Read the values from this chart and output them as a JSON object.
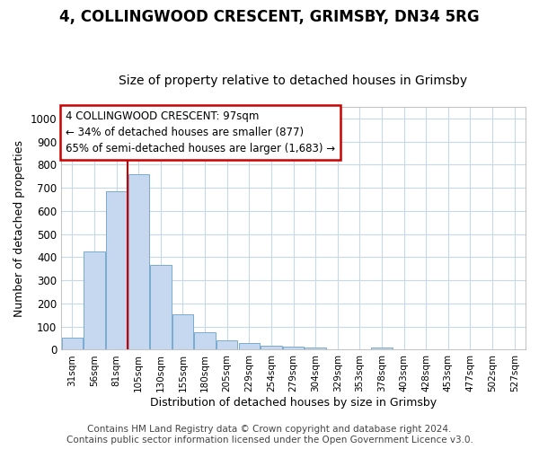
{
  "title1": "4, COLLINGWOOD CRESCENT, GRIMSBY, DN34 5RG",
  "title2": "Size of property relative to detached houses in Grimsby",
  "xlabel": "Distribution of detached houses by size in Grimsby",
  "ylabel": "Number of detached properties",
  "categories": [
    "31sqm",
    "56sqm",
    "81sqm",
    "105sqm",
    "130sqm",
    "155sqm",
    "180sqm",
    "205sqm",
    "229sqm",
    "254sqm",
    "279sqm",
    "304sqm",
    "329sqm",
    "353sqm",
    "378sqm",
    "403sqm",
    "428sqm",
    "453sqm",
    "477sqm",
    "502sqm",
    "527sqm"
  ],
  "values": [
    52,
    425,
    685,
    760,
    365,
    155,
    75,
    40,
    30,
    17,
    15,
    10,
    0,
    0,
    10,
    0,
    0,
    0,
    0,
    0,
    0
  ],
  "bar_color": "#c5d8ef",
  "bar_edge_color": "#7aaad0",
  "grid_color": "#c8d8e8",
  "annotation_box_text": "4 COLLINGWOOD CRESCENT: 97sqm\n← 34% of detached houses are smaller (877)\n65% of semi-detached houses are larger (1,683) →",
  "annotation_box_color": "#ffffff",
  "annotation_box_edge_color": "#cc0000",
  "annotation_text_size": 8.5,
  "vline_x": 2.5,
  "vline_color": "#cc0000",
  "ylim": [
    0,
    1050
  ],
  "yticks": [
    0,
    100,
    200,
    300,
    400,
    500,
    600,
    700,
    800,
    900,
    1000
  ],
  "footer1": "Contains HM Land Registry data © Crown copyright and database right 2024.",
  "footer2": "Contains public sector information licensed under the Open Government Licence v3.0.",
  "title1_size": 12,
  "title2_size": 10,
  "xlabel_size": 9,
  "ylabel_size": 9,
  "footer_size": 7.5,
  "bg_color": "#ffffff"
}
